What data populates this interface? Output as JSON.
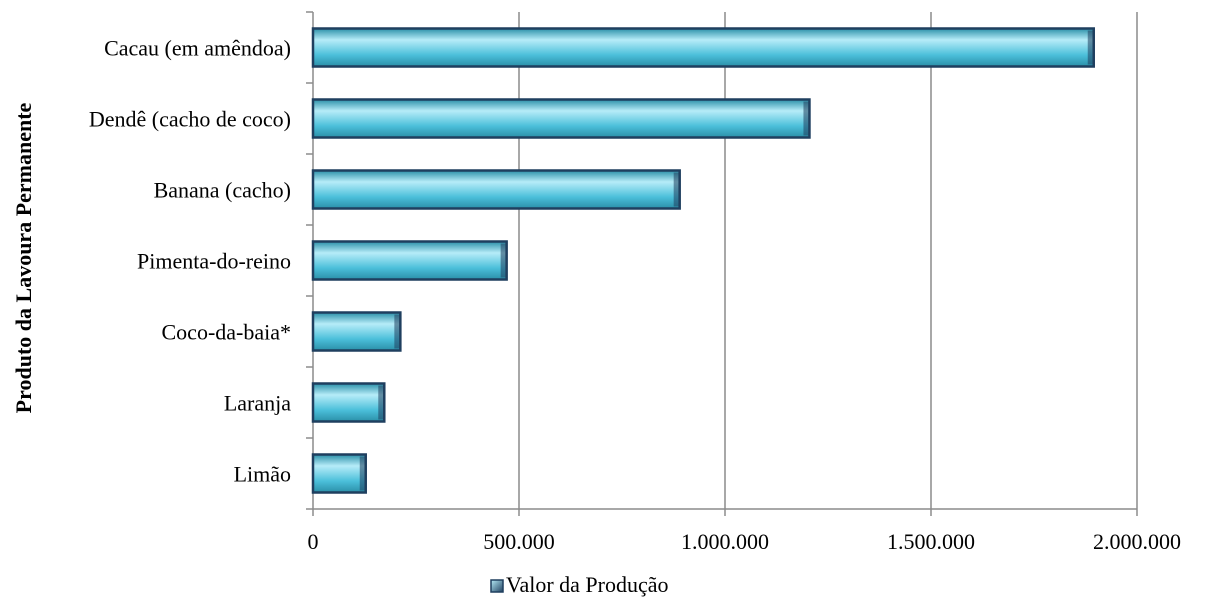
{
  "chart_data": {
    "type": "bar",
    "orientation": "horizontal",
    "categories": [
      "Cacau (em amêndoa)",
      "Dendê (cacho de coco)",
      "Banana (cacho)",
      "Pimenta-do-reino",
      "Coco-da-baia*",
      "Laranja",
      "Limão"
    ],
    "series": [
      {
        "name": "Valor da Produção",
        "values": [
          1895000,
          1205000,
          890000,
          470000,
          212000,
          173000,
          128000
        ]
      }
    ],
    "ylabel": "Produto da Lavoura Permanente",
    "xlabel": "",
    "xlim": [
      0,
      2000000
    ],
    "x_ticks": [
      0,
      500000,
      1000000,
      1500000,
      2000000
    ],
    "x_tick_labels": [
      "0",
      "500.000",
      "1.000.000",
      "1.500.000",
      "2.000.000"
    ],
    "grid": "vertical",
    "legend_position": "bottom",
    "colors": {
      "bar_fill": "#4bbfda",
      "bar_highlight": "#b6ecf8",
      "bar_shadow": "#2a8fa8",
      "bar_border": "#1f3f5f",
      "gridline": "#8c8c8c",
      "axis": "#8c8c8c"
    }
  }
}
